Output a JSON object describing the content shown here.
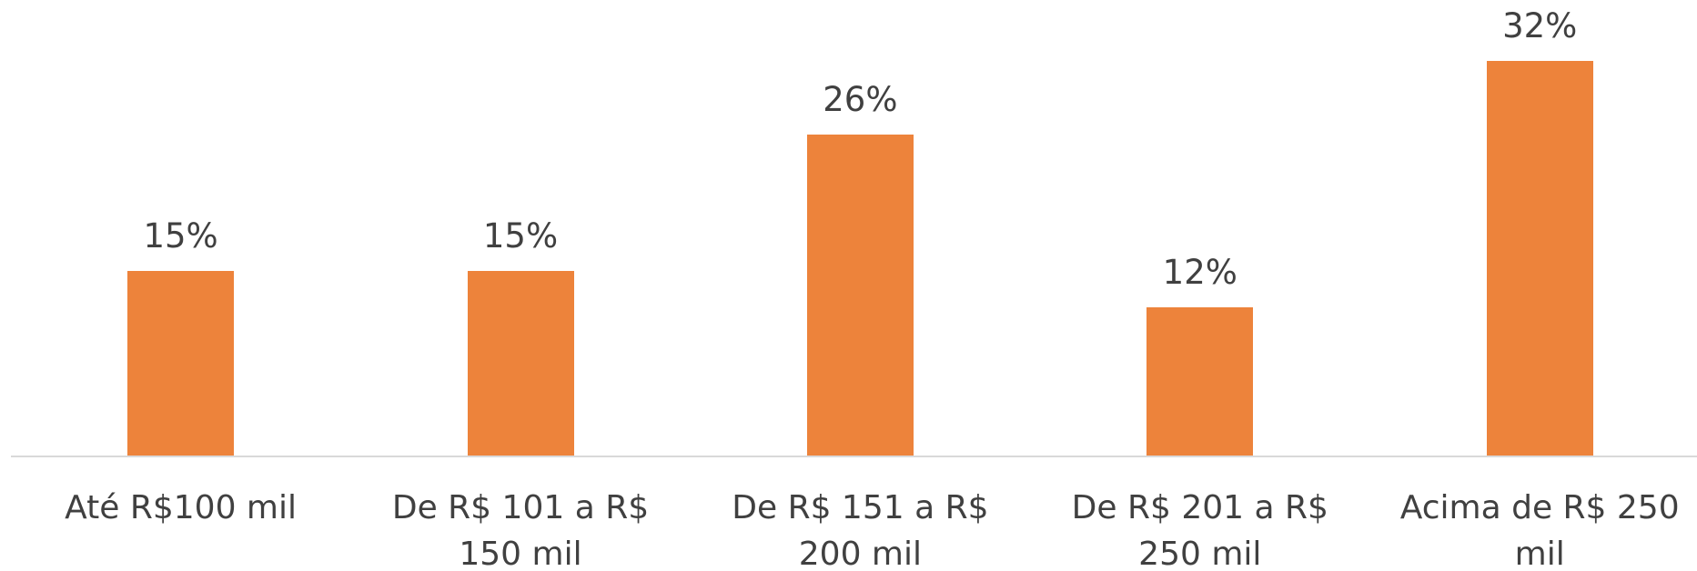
{
  "chart_data": {
    "type": "bar",
    "categories": [
      "Até R$100 mil",
      "De R$ 101 a R$ 150 mil",
      "De R$ 151 a R$ 200 mil",
      "De R$ 201 a R$ 250 mil",
      "Acima de R$ 250 mil"
    ],
    "values": [
      15,
      15,
      26,
      12,
      32
    ],
    "value_labels": [
      "15%",
      "15%",
      "26%",
      "12%",
      "32%"
    ],
    "color": "#ed833b"
  }
}
